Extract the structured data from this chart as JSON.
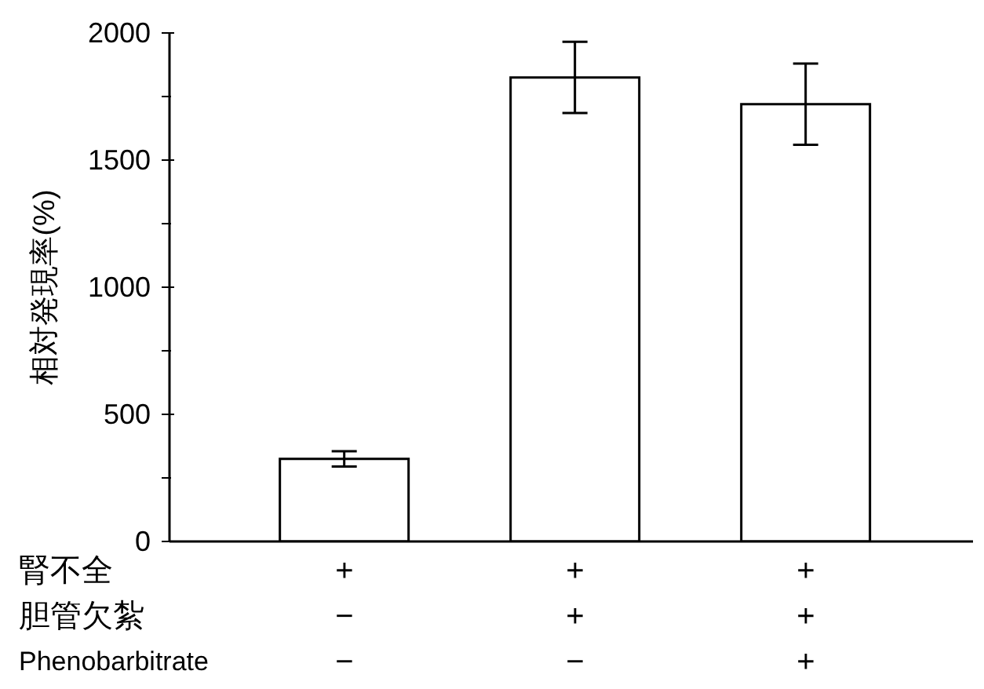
{
  "chart_data": {
    "type": "bar",
    "ylabel": "相対発現率(%)",
    "categories": [
      "+\n−\n−",
      "+\n+\n−",
      "+\n+\n+"
    ],
    "values": [
      325,
      1825,
      1720
    ],
    "errors": [
      30,
      140,
      160
    ],
    "color": "#ffffff",
    "ylim": [
      0,
      2000
    ],
    "yticks": [
      0,
      {
        "value": 250,
        "label": null
      },
      500,
      {
        "value": 750,
        "label": null
      },
      1000,
      {
        "value": 1250,
        "label": null
      },
      1500,
      {
        "value": 1750,
        "label": null
      },
      2000
    ],
    "annotations": [
      "腎不全",
      "胆管欠紮",
      "Phenobarbitrate"
    ],
    "grid": false,
    "legend": false
  }
}
